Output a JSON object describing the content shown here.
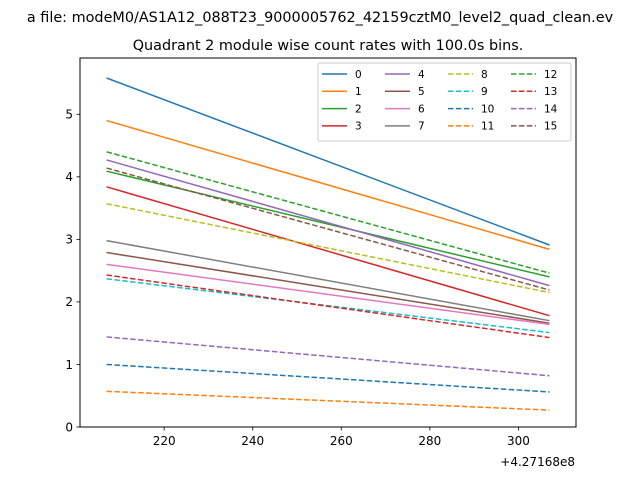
{
  "figure": {
    "suptitle": "a file: modeM0/AS1A12_088T23_9000005762_42159cztM0_level2_quad_clean.ev"
  },
  "chart_data": {
    "type": "line",
    "title": "Quadrant 2 module wise count rates with 100.0s bins.",
    "xlabel": "",
    "ylabel": "",
    "x_offset_label": "+4.27168e8",
    "xlim": [
      201,
      313
    ],
    "ylim": [
      0,
      5.9
    ],
    "x_ticks": [
      220,
      240,
      260,
      280,
      300
    ],
    "y_ticks": [
      0,
      1,
      2,
      3,
      4,
      5
    ],
    "grid": false,
    "legend": {
      "placement": "top-right",
      "columns": 4
    },
    "x": [
      207,
      307
    ],
    "series": [
      {
        "name": "0",
        "values": [
          5.58,
          2.91
        ],
        "color": "#1f77b4",
        "dash": "solid"
      },
      {
        "name": "1",
        "values": [
          4.9,
          2.84
        ],
        "color": "#ff7f0e",
        "dash": "solid"
      },
      {
        "name": "2",
        "values": [
          4.09,
          2.4
        ],
        "color": "#2ca02c",
        "dash": "solid"
      },
      {
        "name": "3",
        "values": [
          3.84,
          1.78
        ],
        "color": "#d62728",
        "dash": "solid"
      },
      {
        "name": "4",
        "values": [
          4.27,
          2.26
        ],
        "color": "#9467bd",
        "dash": "solid"
      },
      {
        "name": "5",
        "values": [
          2.79,
          1.66
        ],
        "color": "#8c564b",
        "dash": "solid"
      },
      {
        "name": "6",
        "values": [
          2.6,
          1.64
        ],
        "color": "#e377c2",
        "dash": "solid"
      },
      {
        "name": "7",
        "values": [
          2.98,
          1.7
        ],
        "color": "#7f7f7f",
        "dash": "solid"
      },
      {
        "name": "8",
        "values": [
          3.57,
          2.15
        ],
        "color": "#bcbd22",
        "dash": "dashed"
      },
      {
        "name": "9",
        "values": [
          2.37,
          1.51
        ],
        "color": "#17becf",
        "dash": "dashed"
      },
      {
        "name": "10",
        "values": [
          1.0,
          0.56
        ],
        "color": "#1f77b4",
        "dash": "dashed"
      },
      {
        "name": "11",
        "values": [
          0.57,
          0.27
        ],
        "color": "#ff7f0e",
        "dash": "dashed"
      },
      {
        "name": "12",
        "values": [
          4.4,
          2.46
        ],
        "color": "#2ca02c",
        "dash": "dashed"
      },
      {
        "name": "13",
        "values": [
          2.43,
          1.43
        ],
        "color": "#d62728",
        "dash": "dashed"
      },
      {
        "name": "14",
        "values": [
          1.44,
          0.82
        ],
        "color": "#9467bd",
        "dash": "dashed"
      },
      {
        "name": "15",
        "values": [
          4.14,
          2.19
        ],
        "color": "#8c564b",
        "dash": "dashed"
      }
    ]
  }
}
